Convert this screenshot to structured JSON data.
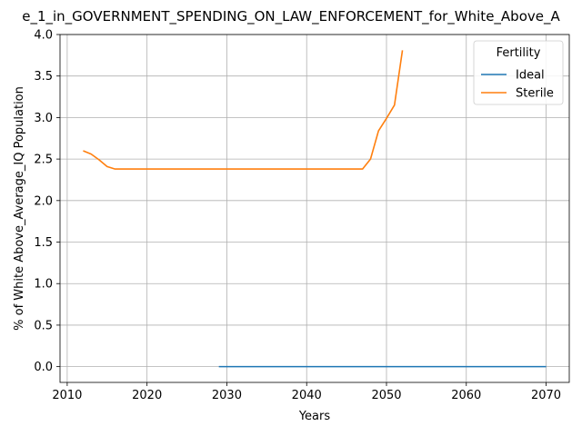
{
  "chart_data": {
    "type": "line",
    "title": "e_1_in_GOVERNMENT_SPENDING_ON_LAW_ENFORCEMENT_for_White_Above_A",
    "xlabel": "Years",
    "ylabel": "% of White Above_Average_IQ Population",
    "xlim": [
      2009.1,
      2072.9
    ],
    "ylim": [
      -0.19,
      4.0
    ],
    "xticks": [
      2010,
      2020,
      2030,
      2040,
      2050,
      2060,
      2070
    ],
    "xtick_labels": [
      "2010",
      "2020",
      "2030",
      "2040",
      "2050",
      "2060",
      "2070"
    ],
    "yticks": [
      0.0,
      0.5,
      1.0,
      1.5,
      2.0,
      2.5,
      3.0,
      3.5,
      4.0
    ],
    "ytick_labels": [
      "0.0",
      "0.5",
      "1.0",
      "1.5",
      "2.0",
      "2.5",
      "3.0",
      "3.5",
      "4.0"
    ],
    "grid": true,
    "legend": {
      "title": "Fertility",
      "placement": "top-right"
    },
    "series": [
      {
        "name": "Ideal",
        "color": "#1f77b4",
        "x": [
          2029,
          2070
        ],
        "y": [
          0.0,
          0.0
        ]
      },
      {
        "name": "Sterile",
        "color": "#ff7f0e",
        "x": [
          2012,
          2013,
          2014,
          2015,
          2016,
          2017,
          2020,
          2030,
          2040,
          2046,
          2047,
          2048,
          2049,
          2050,
          2051,
          2052
        ],
        "y": [
          2.6,
          2.56,
          2.49,
          2.41,
          2.38,
          2.38,
          2.38,
          2.38,
          2.38,
          2.38,
          2.38,
          2.5,
          2.84,
          2.99,
          3.15,
          3.81
        ]
      }
    ]
  }
}
